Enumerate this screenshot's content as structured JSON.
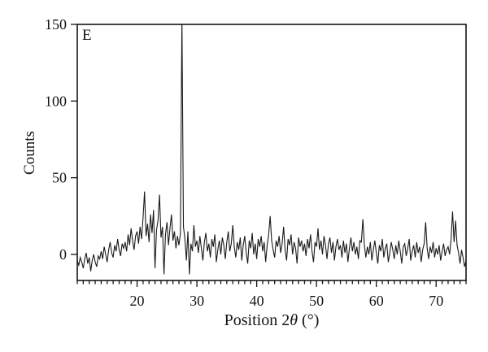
{
  "chart_data": {
    "type": "line",
    "title": "",
    "annotation": "E",
    "xlabel": "Position 2θ (°)",
    "xlabel_parts": {
      "prefix": "Position 2",
      "theta": "θ",
      "suffix": " (°)"
    },
    "ylabel": "Counts",
    "xlim": [
      10,
      75
    ],
    "ylim": [
      -17,
      150
    ],
    "x_major_ticks": [
      20,
      30,
      40,
      50,
      60,
      70
    ],
    "x_minor_tick_step": 1,
    "y_ticks": [
      0,
      50,
      100,
      150
    ],
    "grid": false,
    "legend": "none",
    "background_color": "#ffffff",
    "ink_color": "#141414",
    "line_color": "#1a1a1a",
    "series": [
      {
        "name": "E",
        "x_start": 10,
        "x_step": 0.25,
        "values": [
          -4,
          -7,
          -2,
          -5,
          -9,
          -3,
          1,
          -6,
          -2,
          -11,
          -4,
          0,
          -5,
          -8,
          -1,
          -3,
          2,
          -3,
          5,
          0,
          -5,
          3,
          8,
          1,
          -2,
          6,
          2,
          10,
          3,
          -1,
          7,
          4,
          8,
          2,
          13,
          6,
          17,
          9,
          3,
          12,
          15,
          7,
          18,
          10,
          24,
          41,
          12,
          20,
          8,
          26,
          14,
          29,
          -9,
          16,
          22,
          39,
          11,
          18,
          -13,
          13,
          21,
          6,
          17,
          26,
          9,
          15,
          4,
          12,
          6,
          14,
          155,
          18,
          10,
          -4,
          15,
          -13,
          7,
          2,
          19,
          5,
          9,
          1,
          12,
          4,
          -4,
          8,
          14,
          2,
          7,
          -2,
          10,
          5,
          13,
          -5,
          3,
          9,
          0,
          11,
          6,
          -3,
          8,
          15,
          2,
          7,
          19,
          5,
          -2,
          8,
          3,
          11,
          -4,
          6,
          12,
          1,
          -6,
          9,
          4,
          14,
          0,
          7,
          -3,
          10,
          5,
          12,
          2,
          8,
          -5,
          6,
          13,
          25,
          9,
          3,
          -2,
          9,
          5,
          12,
          1,
          7,
          18,
          3,
          -4,
          10,
          6,
          13,
          0,
          8,
          4,
          -6,
          11,
          5,
          9,
          2,
          7,
          -1,
          10,
          4,
          13,
          2,
          -5,
          8,
          5,
          17,
          3,
          9,
          0,
          12,
          6,
          -3,
          7,
          11,
          1,
          8,
          -4,
          5,
          10,
          3,
          6,
          -2,
          9,
          1,
          7,
          -5,
          4,
          11,
          2,
          8,
          0,
          5,
          -3,
          9,
          8,
          23,
          6,
          -2,
          5,
          0,
          8,
          -4,
          3,
          9,
          1,
          -6,
          6,
          2,
          10,
          -2,
          4,
          7,
          -5,
          1,
          8,
          3,
          -3,
          6,
          0,
          9,
          2,
          -6,
          5,
          7,
          -1,
          4,
          10,
          -4,
          2,
          6,
          -2,
          8,
          1,
          5,
          -5,
          3,
          7,
          21,
          4,
          -3,
          5,
          1,
          8,
          -2,
          4,
          0,
          6,
          -4,
          2,
          7,
          -1,
          3,
          5,
          0,
          10,
          28,
          8,
          22,
          6,
          1,
          -6,
          3,
          -2,
          -8,
          -4
        ]
      }
    ]
  }
}
